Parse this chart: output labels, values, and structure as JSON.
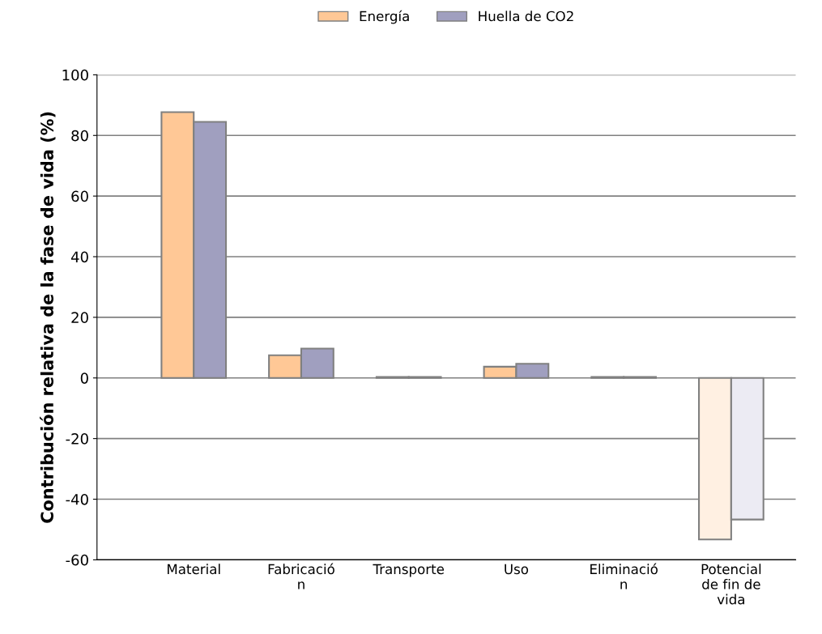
{
  "chart_data": {
    "type": "bar",
    "ylabel": "Contribución relativa de la fase de vida (%)",
    "categories": [
      "Material",
      "Fabricació\nn",
      "Transporte",
      "Uso",
      "Eliminació\nn",
      "Potencial\nde fin de\nvida"
    ],
    "series": [
      {
        "name": "Energía",
        "color": "#ffc896",
        "colors": [
          "#ffc896",
          "#ffc896",
          "#ffc896",
          "#ffc896",
          "#ffc896",
          "#fff0e2"
        ],
        "values": [
          87.7,
          7.5,
          0.3,
          3.7,
          0.3,
          -53.3
        ]
      },
      {
        "name": "Huella de CO2",
        "color": "#a09fbf",
        "colors": [
          "#a09fbf",
          "#a09fbf",
          "#a09fbf",
          "#a09fbf",
          "#a09fbf",
          "#ecebf3"
        ],
        "values": [
          84.5,
          9.7,
          0.3,
          4.7,
          0.3,
          -46.7
        ]
      }
    ],
    "ylim": [
      -60,
      100
    ],
    "yticks": [
      -60,
      -40,
      -20,
      0,
      20,
      40,
      60,
      80,
      100
    ],
    "grid": "y",
    "legend": "top"
  }
}
